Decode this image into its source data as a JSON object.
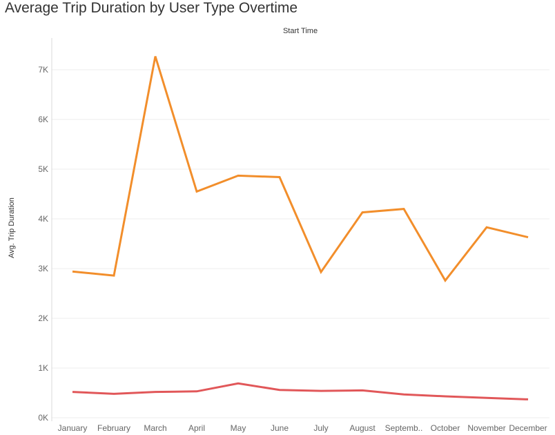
{
  "colors": {
    "orange": "#F28E2B",
    "red": "#E15759",
    "grid": "#ECECEC"
  },
  "chart_data": {
    "type": "line",
    "title": "Average Trip Duration by User Type Overtime",
    "xlabel": "Start Time",
    "ylabel": "Avg. Trip Duration",
    "categories": [
      "January",
      "February",
      "March",
      "April",
      "May",
      "June",
      "July",
      "August",
      "Septemb..",
      "October",
      "November",
      "December"
    ],
    "series": [
      {
        "color": "#F28E2B",
        "values": [
          2940,
          2860,
          7270,
          4550,
          4870,
          4840,
          2930,
          4130,
          4200,
          2760,
          3830,
          3630
        ]
      },
      {
        "color": "#E15759",
        "values": [
          520,
          480,
          520,
          530,
          690,
          560,
          540,
          550,
          470,
          430,
          400,
          370
        ]
      }
    ],
    "ylim": [
      0,
      7500
    ],
    "yticks": [
      0,
      1000,
      2000,
      3000,
      4000,
      5000,
      6000,
      7000
    ],
    "ytick_labels": [
      "0K",
      "1K",
      "2K",
      "3K",
      "4K",
      "5K",
      "6K",
      "7K"
    ],
    "grid": true,
    "legend": "none"
  }
}
